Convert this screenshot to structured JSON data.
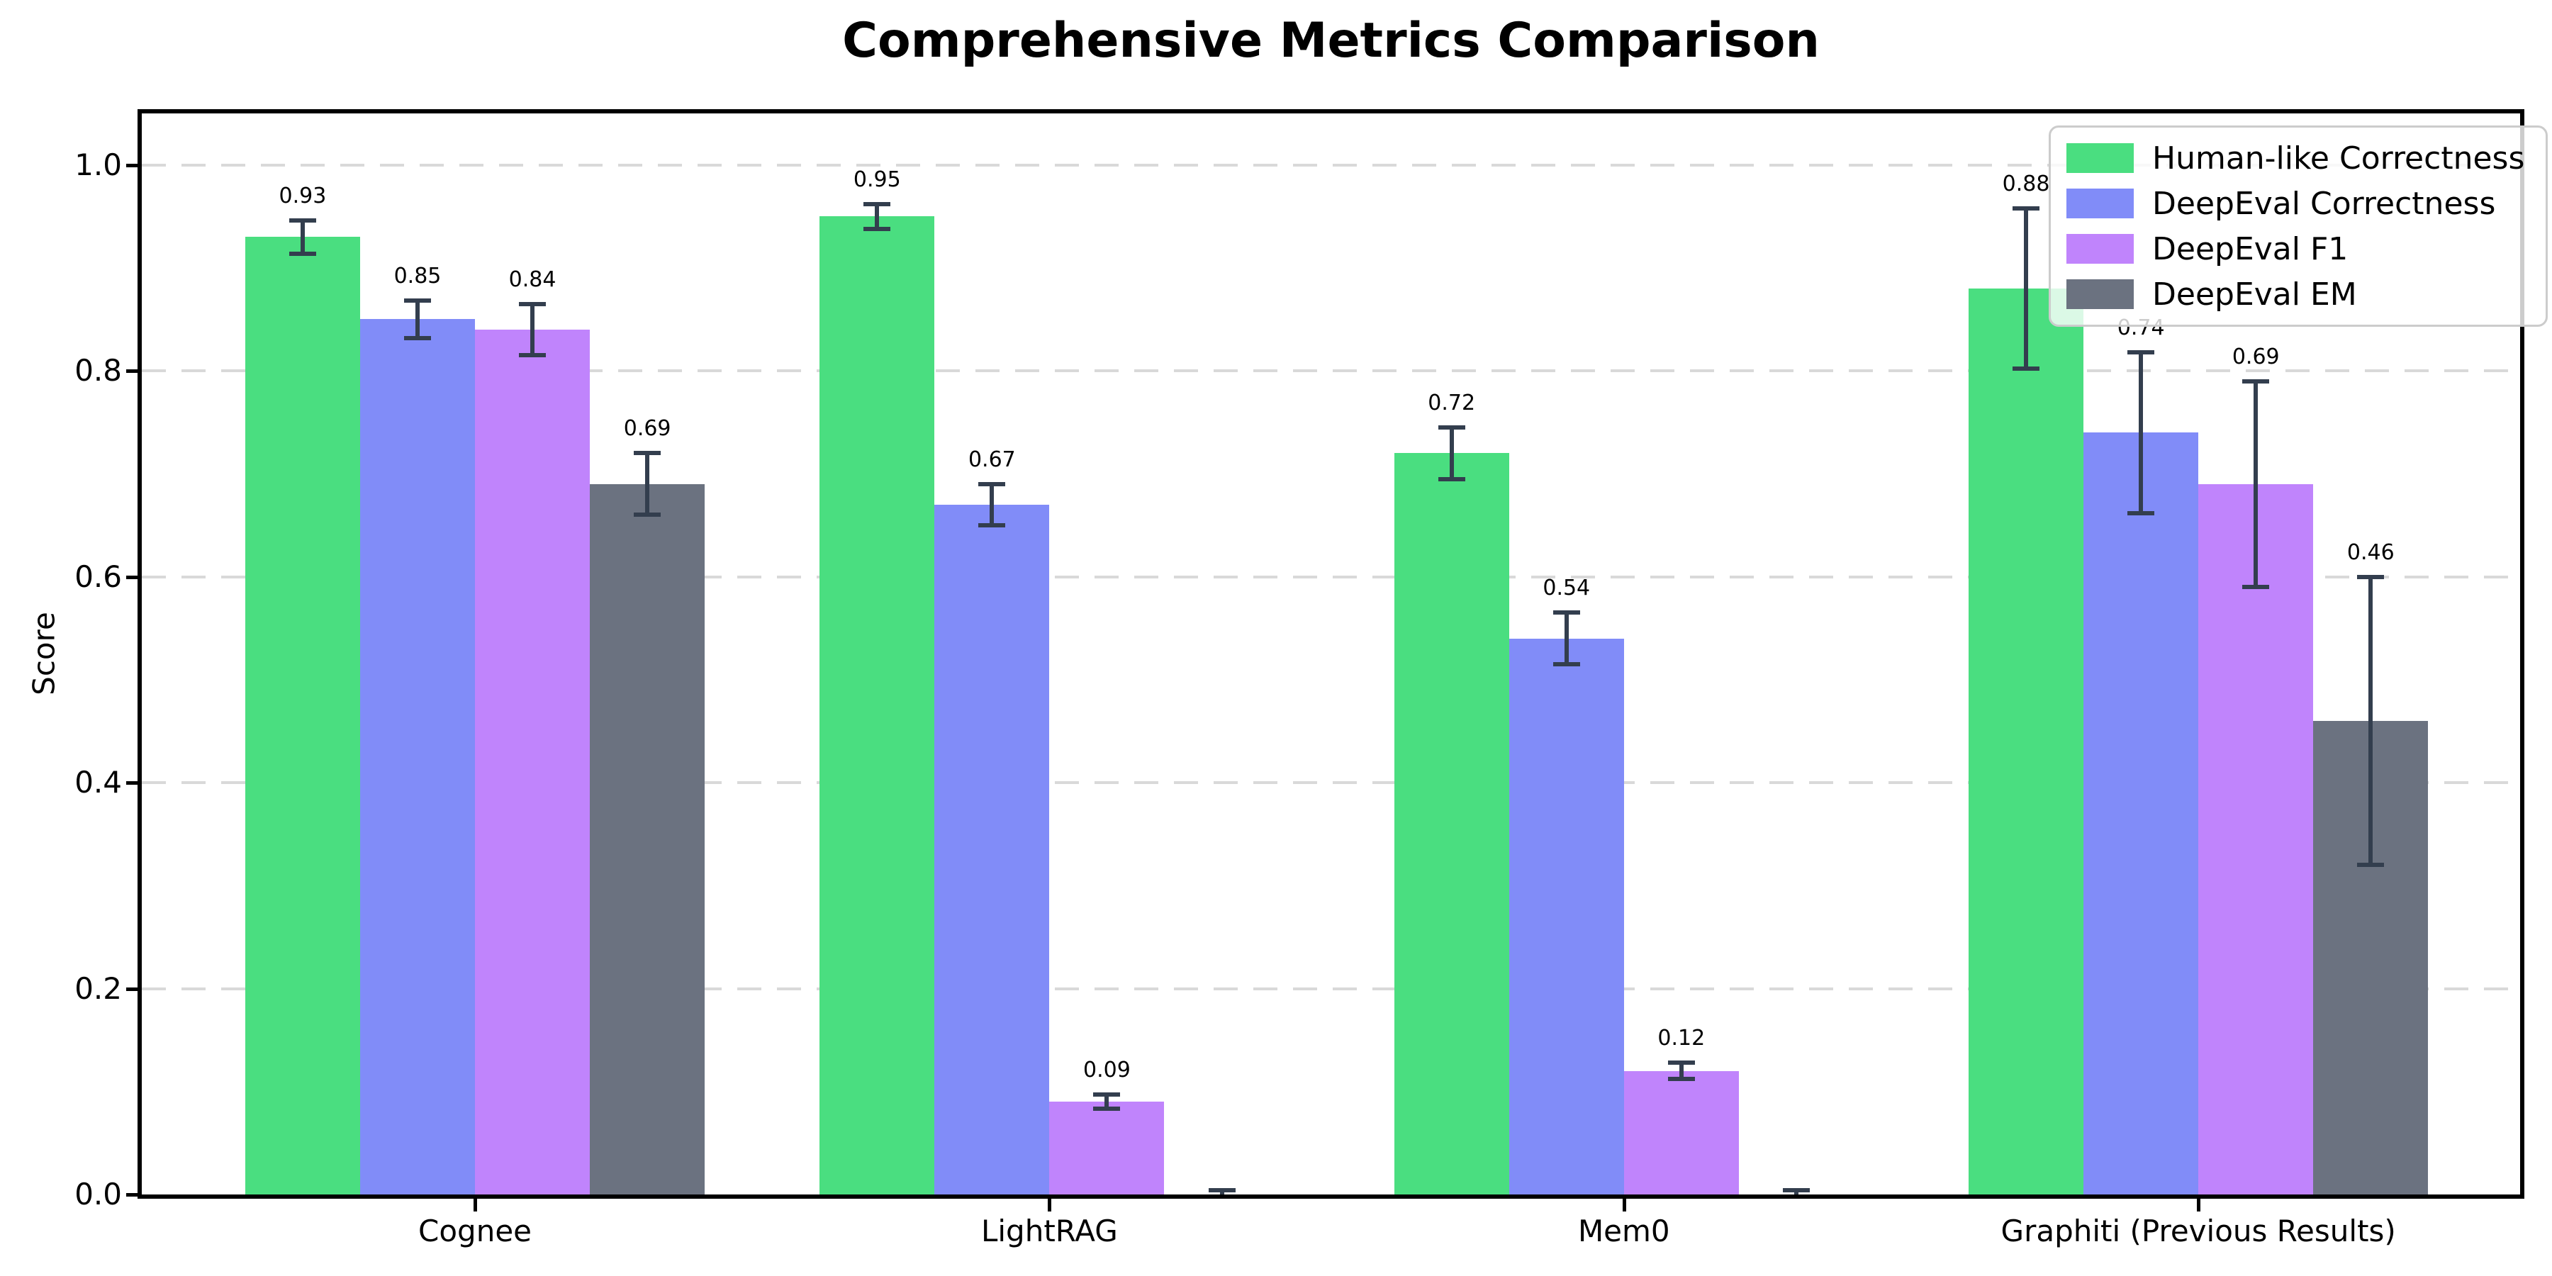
{
  "chart_data": {
    "type": "bar",
    "title": "Comprehensive Metrics Comparison",
    "xlabel": "",
    "ylabel": "Score",
    "categories": [
      "Cognee",
      "LightRAG",
      "Mem0",
      "Graphiti (Previous Results)"
    ],
    "series": [
      {
        "name": "Human-like Correctness",
        "color": "#4ade80",
        "values": [
          0.93,
          0.95,
          0.72,
          0.88
        ],
        "errors": [
          0.016,
          0.012,
          0.025,
          0.078
        ],
        "labels": [
          "0.93",
          "0.95",
          "0.72",
          "0.88"
        ]
      },
      {
        "name": "DeepEval Correctness",
        "color": "#818cf8",
        "values": [
          0.85,
          0.67,
          0.54,
          0.74
        ],
        "errors": [
          0.018,
          0.02,
          0.025,
          0.078
        ],
        "labels": [
          "0.85",
          "0.67",
          "0.54",
          "0.74"
        ]
      },
      {
        "name": "DeepEval F1",
        "color": "#c084fc",
        "values": [
          0.84,
          0.09,
          0.12,
          0.69
        ],
        "errors": [
          0.025,
          0.007,
          0.008,
          0.1
        ],
        "labels": [
          "0.84",
          "0.09",
          "0.12",
          "0.69"
        ]
      },
      {
        "name": "DeepEval EM",
        "color": "#6b7280",
        "values": [
          0.69,
          0.0,
          0.0,
          0.46
        ],
        "errors": [
          0.03,
          0.004,
          0.004,
          0.14
        ],
        "labels": [
          "0.69",
          "",
          "",
          "0.46"
        ]
      }
    ],
    "ylim": [
      0,
      1.05
    ],
    "ytick_labels": [
      "0.0",
      "0.2",
      "0.4",
      "0.6",
      "0.8",
      "1.0"
    ],
    "grid": "horizontal-dashed",
    "grid_color": "#d9d9d9",
    "legend_position": "upper right",
    "error_bar_color": "#333e4e",
    "axis_color": "#000000"
  }
}
